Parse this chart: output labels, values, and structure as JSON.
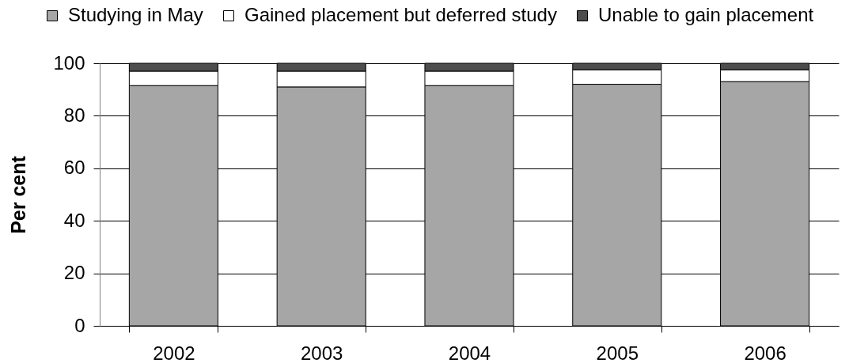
{
  "chart_data": {
    "type": "bar",
    "stacked": true,
    "ylabel": "Per cent",
    "categories": [
      "2002",
      "2003",
      "2004",
      "2005",
      "2006"
    ],
    "series": [
      {
        "name": "Studying in May",
        "color": "#a6a6a6",
        "values": [
          91.5,
          91,
          91.5,
          92,
          93
        ]
      },
      {
        "name": "Gained placement but deferred study",
        "color": "#ffffff",
        "values": [
          5.5,
          6,
          5.5,
          5.5,
          4.5
        ]
      },
      {
        "name": "Unable to gain placement",
        "color": "#4d4d4d",
        "values": [
          3,
          3,
          3,
          2.5,
          2.5
        ]
      }
    ],
    "ylim": [
      0,
      100
    ],
    "yticks": [
      0,
      20,
      40,
      60,
      80,
      100
    ],
    "grid": "y",
    "legend": "top"
  }
}
